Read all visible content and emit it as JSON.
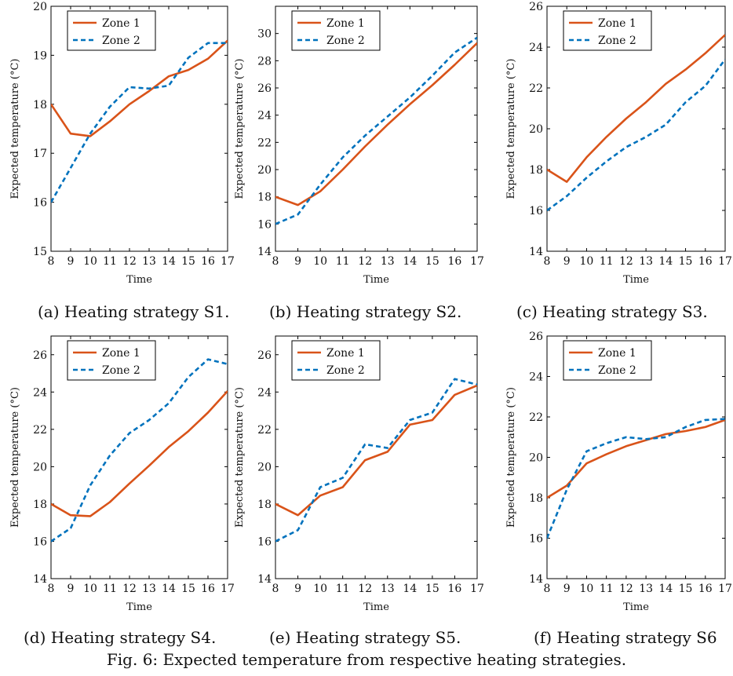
{
  "figure_caption": "Fig. 6: Expected temperature from respective heating strategies.",
  "colors": {
    "zone1": "#d95319",
    "zone2": "#0072bd"
  },
  "chart_data": [
    {
      "type": "line",
      "caption": "(a) Heating strategy S1.",
      "xlabel": "Time",
      "ylabel": "Expected temperature (°C)",
      "x": [
        8,
        9,
        10,
        11,
        12,
        13,
        14,
        15,
        16,
        17
      ],
      "xlim": [
        8,
        17
      ],
      "ylim": [
        15,
        20
      ],
      "yticks": [
        15,
        16,
        17,
        18,
        19,
        20
      ],
      "legend_position": "top-left",
      "series": [
        {
          "name": "Zone 1",
          "style": "solid",
          "values": [
            18.0,
            17.4,
            17.35,
            17.65,
            18.0,
            18.27,
            18.57,
            18.7,
            18.93,
            19.3
          ]
        },
        {
          "name": "Zone 2",
          "style": "dashed",
          "values": [
            16.0,
            16.7,
            17.4,
            17.95,
            18.35,
            18.32,
            18.38,
            18.95,
            19.25,
            19.25
          ]
        }
      ]
    },
    {
      "type": "line",
      "caption": "(b) Heating strategy S2.",
      "xlabel": "Time",
      "ylabel": "Expected temperature (°C)",
      "x": [
        8,
        9,
        10,
        11,
        12,
        13,
        14,
        15,
        16,
        17
      ],
      "xlim": [
        8,
        17
      ],
      "ylim": [
        14,
        32
      ],
      "yticks": [
        14,
        16,
        18,
        20,
        22,
        24,
        26,
        28,
        30
      ],
      "legend_position": "top-left",
      "series": [
        {
          "name": "Zone 1",
          "style": "solid",
          "values": [
            18.0,
            17.4,
            18.4,
            20.0,
            21.7,
            23.3,
            24.8,
            26.2,
            27.7,
            29.3
          ]
        },
        {
          "name": "Zone 2",
          "style": "dashed",
          "values": [
            16.0,
            16.7,
            18.9,
            20.9,
            22.5,
            23.9,
            25.3,
            26.9,
            28.6,
            29.7
          ]
        }
      ]
    },
    {
      "type": "line",
      "caption": "(c) Heating strategy S3.",
      "xlabel": "Time",
      "ylabel": "Expected temperature (°C)",
      "x": [
        8,
        9,
        10,
        11,
        12,
        13,
        14,
        15,
        16,
        17
      ],
      "xlim": [
        8,
        17
      ],
      "ylim": [
        14,
        26
      ],
      "yticks": [
        14,
        16,
        18,
        20,
        22,
        24,
        26
      ],
      "legend_position": "top-left",
      "series": [
        {
          "name": "Zone 1",
          "style": "solid",
          "values": [
            18.0,
            17.4,
            18.6,
            19.6,
            20.5,
            21.3,
            22.2,
            22.9,
            23.7,
            24.6
          ]
        },
        {
          "name": "Zone 2",
          "style": "dashed",
          "values": [
            16.0,
            16.7,
            17.6,
            18.4,
            19.1,
            19.6,
            20.2,
            21.3,
            22.1,
            23.4
          ]
        }
      ]
    },
    {
      "type": "line",
      "caption": "(d) Heating strategy S4.",
      "xlabel": "Time",
      "ylabel": "Expected temperature (°C)",
      "x": [
        8,
        9,
        10,
        11,
        12,
        13,
        14,
        15,
        16,
        17
      ],
      "xlim": [
        8,
        17
      ],
      "ylim": [
        14,
        27
      ],
      "yticks": [
        14,
        16,
        18,
        20,
        22,
        24,
        26
      ],
      "legend_position": "top-left",
      "series": [
        {
          "name": "Zone 1",
          "style": "solid",
          "values": [
            18.0,
            17.4,
            17.35,
            18.1,
            19.1,
            20.05,
            21.05,
            21.9,
            22.9,
            24.05
          ]
        },
        {
          "name": "Zone 2",
          "style": "dashed",
          "values": [
            16.0,
            16.7,
            19.0,
            20.6,
            21.8,
            22.5,
            23.4,
            24.8,
            25.75,
            25.5
          ]
        }
      ]
    },
    {
      "type": "line",
      "caption": "(e) Heating strategy S5.",
      "xlabel": "Time",
      "ylabel": "Expected temperature (°C)",
      "x": [
        8,
        9,
        10,
        11,
        12,
        13,
        14,
        15,
        16,
        17
      ],
      "xlim": [
        8,
        17
      ],
      "ylim": [
        14,
        27
      ],
      "yticks": [
        14,
        16,
        18,
        20,
        22,
        24,
        26
      ],
      "legend_position": "top-left",
      "series": [
        {
          "name": "Zone 1",
          "style": "solid",
          "values": [
            18.0,
            17.4,
            18.45,
            18.9,
            20.35,
            20.8,
            22.25,
            22.5,
            23.85,
            24.35
          ]
        },
        {
          "name": "Zone 2",
          "style": "dashed",
          "values": [
            16.0,
            16.6,
            18.9,
            19.4,
            21.2,
            21.0,
            22.5,
            22.9,
            24.7,
            24.4
          ]
        }
      ]
    },
    {
      "type": "line",
      "caption": "(f) Heating strategy S6",
      "xlabel": "Time",
      "ylabel": "Expected temperature (°C)",
      "x": [
        8,
        9,
        10,
        11,
        12,
        13,
        14,
        15,
        16,
        17
      ],
      "xlim": [
        8,
        17
      ],
      "ylim": [
        14,
        26
      ],
      "yticks": [
        14,
        16,
        18,
        20,
        22,
        24,
        26
      ],
      "legend_position": "top-left",
      "series": [
        {
          "name": "Zone 1",
          "style": "solid",
          "values": [
            18.0,
            18.6,
            19.7,
            20.15,
            20.55,
            20.85,
            21.15,
            21.3,
            21.5,
            21.85
          ]
        },
        {
          "name": "Zone 2",
          "style": "dashed",
          "values": [
            16.0,
            18.4,
            20.3,
            20.7,
            21.0,
            20.9,
            21.0,
            21.5,
            21.85,
            21.9
          ]
        }
      ]
    }
  ]
}
